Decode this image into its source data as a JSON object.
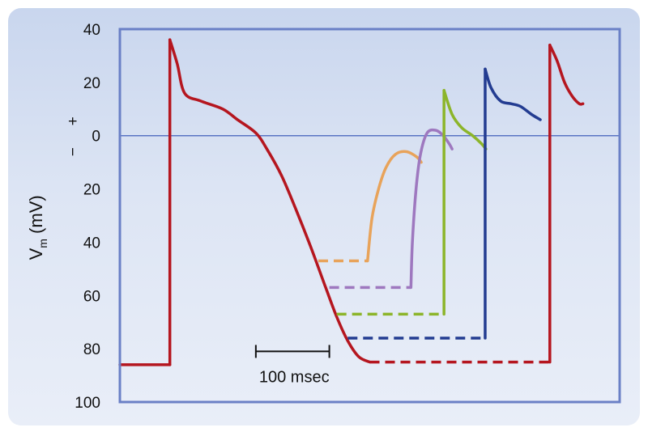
{
  "chart_data": {
    "type": "line",
    "title": "",
    "xlabel": "",
    "ylabel": "V",
    "ylabel_subscript": "m",
    "ylabel_unit": "(mV)",
    "sign_plus": "+",
    "sign_minus": "−",
    "x_unit": "msec",
    "ylim": [
      40,
      -100
    ],
    "xlim": [
      0,
      680
    ],
    "yticks": [
      {
        "value": 40,
        "label": "40"
      },
      {
        "value": 20,
        "label": "20"
      },
      {
        "value": 0,
        "label": "0"
      },
      {
        "value": -20,
        "label": "20"
      },
      {
        "value": -40,
        "label": "40"
      },
      {
        "value": -60,
        "label": "60"
      },
      {
        "value": -80,
        "label": "80"
      },
      {
        "value": -100,
        "label": "100"
      }
    ],
    "zero_line": true,
    "scale_bar": {
      "x_start": 185,
      "length_msec": 100,
      "y": -81,
      "label": "100 msec"
    },
    "series": [
      {
        "color": "#b5161f",
        "points": [
          [
            0,
            -86
          ],
          [
            68,
            -86
          ],
          [
            68,
            36
          ],
          [
            78,
            27
          ],
          [
            88,
            16
          ],
          [
            110,
            13
          ],
          [
            140,
            10
          ],
          [
            160,
            6
          ],
          [
            185,
            1
          ],
          [
            200,
            -5
          ],
          [
            220,
            -15
          ],
          [
            240,
            -28
          ],
          [
            260,
            -42
          ],
          [
            280,
            -57
          ],
          [
            295,
            -68
          ],
          [
            310,
            -77
          ],
          [
            325,
            -83
          ],
          [
            340,
            -85
          ]
        ],
        "dashed": [
          [
            340,
            -85
          ],
          [
            585,
            -85
          ]
        ],
        "upstroke": [
          [
            585,
            -85
          ],
          [
            585,
            34
          ],
          [
            595,
            28
          ],
          [
            605,
            20
          ],
          [
            615,
            15
          ],
          [
            625,
            12
          ],
          [
            630,
            12
          ]
        ]
      },
      {
        "color": "#e8a35a",
        "dashed": [
          [
            270,
            -47
          ],
          [
            337,
            -47
          ]
        ],
        "points": [
          [
            337,
            -47
          ],
          [
            343,
            -31
          ],
          [
            352,
            -20
          ],
          [
            362,
            -12
          ],
          [
            375,
            -7
          ],
          [
            390,
            -6
          ],
          [
            404,
            -8
          ],
          [
            410,
            -10
          ]
        ]
      },
      {
        "color": "#9e78bf",
        "dashed": [
          [
            285,
            -57
          ],
          [
            396,
            -57
          ]
        ],
        "points": [
          [
            396,
            -57
          ],
          [
            398,
            -40
          ],
          [
            403,
            -20
          ],
          [
            409,
            -7
          ],
          [
            418,
            1
          ],
          [
            430,
            2
          ],
          [
            440,
            0
          ],
          [
            448,
            -3
          ],
          [
            452,
            -5
          ]
        ]
      },
      {
        "color": "#8cb52a",
        "dashed": [
          [
            295,
            -67
          ],
          [
            441,
            -67
          ]
        ],
        "points": [
          [
            441,
            -67
          ],
          [
            441,
            17
          ],
          [
            452,
            8
          ],
          [
            465,
            3
          ],
          [
            480,
            0
          ],
          [
            492,
            -3
          ],
          [
            498,
            -5
          ]
        ]
      },
      {
        "color": "#233c91",
        "dashed": [
          [
            310,
            -76
          ],
          [
            497,
            -76
          ]
        ],
        "points": [
          [
            497,
            -76
          ],
          [
            497,
            25
          ],
          [
            505,
            18
          ],
          [
            518,
            13
          ],
          [
            532,
            12
          ],
          [
            545,
            11
          ],
          [
            560,
            8
          ],
          [
            572,
            6
          ]
        ]
      }
    ]
  }
}
